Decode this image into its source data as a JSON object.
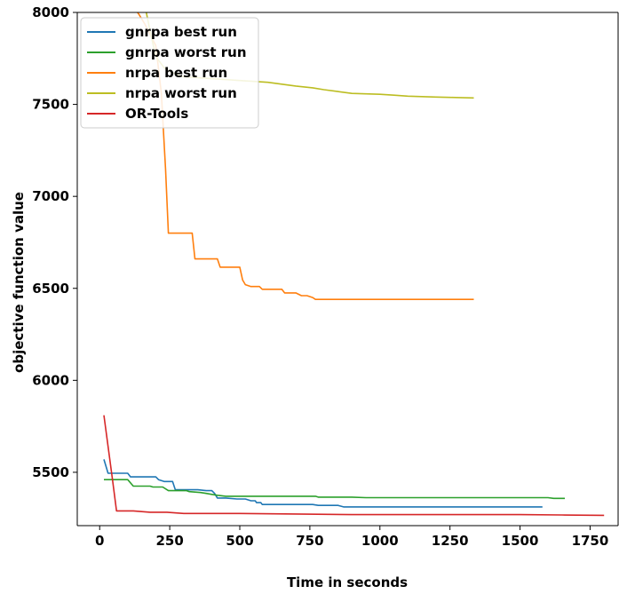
{
  "chart_data": {
    "type": "line",
    "title": "",
    "xlabel": "Time in seconds",
    "ylabel": "objective function value",
    "xlim": [
      -80,
      1850
    ],
    "ylim": [
      5210,
      8000
    ],
    "xticks": [
      0,
      250,
      500,
      750,
      1000,
      1250,
      1500,
      1750
    ],
    "yticks": [
      5500,
      6000,
      6500,
      7000,
      7500,
      8000
    ],
    "grid": false,
    "legend_position": "top-left",
    "series": [
      {
        "name": "gnrpa best run",
        "color": "#1f77b4",
        "points": [
          [
            15,
            5570
          ],
          [
            30,
            5495
          ],
          [
            60,
            5495
          ],
          [
            100,
            5495
          ],
          [
            110,
            5475
          ],
          [
            120,
            5475
          ],
          [
            180,
            5475
          ],
          [
            200,
            5475
          ],
          [
            210,
            5460
          ],
          [
            230,
            5450
          ],
          [
            260,
            5450
          ],
          [
            270,
            5405
          ],
          [
            300,
            5405
          ],
          [
            320,
            5405
          ],
          [
            350,
            5405
          ],
          [
            380,
            5400
          ],
          [
            400,
            5400
          ],
          [
            410,
            5385
          ],
          [
            420,
            5360
          ],
          [
            450,
            5360
          ],
          [
            490,
            5355
          ],
          [
            520,
            5355
          ],
          [
            540,
            5345
          ],
          [
            555,
            5345
          ],
          [
            560,
            5335
          ],
          [
            575,
            5335
          ],
          [
            580,
            5325
          ],
          [
            650,
            5325
          ],
          [
            760,
            5325
          ],
          [
            780,
            5320
          ],
          [
            850,
            5320
          ],
          [
            870,
            5312
          ],
          [
            1000,
            5312
          ],
          [
            1200,
            5312
          ],
          [
            1580,
            5312
          ]
        ]
      },
      {
        "name": "gnrpa worst run",
        "color": "#2ca02c",
        "points": [
          [
            15,
            5460
          ],
          [
            100,
            5460
          ],
          [
            120,
            5425
          ],
          [
            180,
            5425
          ],
          [
            190,
            5420
          ],
          [
            225,
            5420
          ],
          [
            245,
            5400
          ],
          [
            300,
            5400
          ],
          [
            310,
            5400
          ],
          [
            320,
            5395
          ],
          [
            360,
            5390
          ],
          [
            380,
            5385
          ],
          [
            400,
            5380
          ],
          [
            420,
            5375
          ],
          [
            450,
            5370
          ],
          [
            500,
            5370
          ],
          [
            600,
            5370
          ],
          [
            700,
            5370
          ],
          [
            770,
            5370
          ],
          [
            780,
            5365
          ],
          [
            900,
            5365
          ],
          [
            950,
            5362
          ],
          [
            1100,
            5362
          ],
          [
            1300,
            5362
          ],
          [
            1500,
            5362
          ],
          [
            1600,
            5362
          ],
          [
            1620,
            5358
          ],
          [
            1660,
            5358
          ]
        ]
      },
      {
        "name": "nrpa best run",
        "color": "#ff7f0e",
        "points": [
          [
            130,
            8010
          ],
          [
            140,
            7990
          ],
          [
            160,
            7940
          ],
          [
            180,
            7880
          ],
          [
            200,
            7820
          ],
          [
            220,
            7560
          ],
          [
            235,
            7150
          ],
          [
            245,
            6800
          ],
          [
            300,
            6800
          ],
          [
            330,
            6800
          ],
          [
            340,
            6660
          ],
          [
            420,
            6660
          ],
          [
            430,
            6615
          ],
          [
            500,
            6615
          ],
          [
            510,
            6545
          ],
          [
            520,
            6520
          ],
          [
            540,
            6510
          ],
          [
            570,
            6510
          ],
          [
            580,
            6495
          ],
          [
            650,
            6495
          ],
          [
            660,
            6475
          ],
          [
            700,
            6475
          ],
          [
            720,
            6460
          ],
          [
            740,
            6460
          ],
          [
            760,
            6450
          ],
          [
            770,
            6440
          ],
          [
            800,
            6440
          ],
          [
            1000,
            6440
          ],
          [
            1335,
            6440
          ]
        ]
      },
      {
        "name": "nrpa worst run",
        "color": "#bcbd22",
        "points": [
          [
            165,
            8010
          ],
          [
            180,
            7900
          ],
          [
            200,
            7760
          ],
          [
            230,
            7700
          ],
          [
            250,
            7680
          ],
          [
            280,
            7660
          ],
          [
            300,
            7650
          ],
          [
            400,
            7640
          ],
          [
            500,
            7630
          ],
          [
            600,
            7620
          ],
          [
            650,
            7610
          ],
          [
            700,
            7600
          ],
          [
            760,
            7590
          ],
          [
            800,
            7580
          ],
          [
            850,
            7570
          ],
          [
            900,
            7560
          ],
          [
            1000,
            7555
          ],
          [
            1050,
            7550
          ],
          [
            1100,
            7545
          ],
          [
            1200,
            7540
          ],
          [
            1250,
            7538
          ],
          [
            1335,
            7535
          ]
        ]
      },
      {
        "name": "OR-Tools",
        "color": "#d62728",
        "points": [
          [
            15,
            5810
          ],
          [
            30,
            5640
          ],
          [
            45,
            5470
          ],
          [
            60,
            5290
          ],
          [
            120,
            5290
          ],
          [
            180,
            5283
          ],
          [
            240,
            5283
          ],
          [
            300,
            5276
          ],
          [
            320,
            5276
          ],
          [
            500,
            5276
          ],
          [
            700,
            5273
          ],
          [
            900,
            5270
          ],
          [
            1200,
            5270
          ],
          [
            1500,
            5270
          ],
          [
            1650,
            5268
          ],
          [
            1800,
            5266
          ]
        ]
      }
    ]
  }
}
